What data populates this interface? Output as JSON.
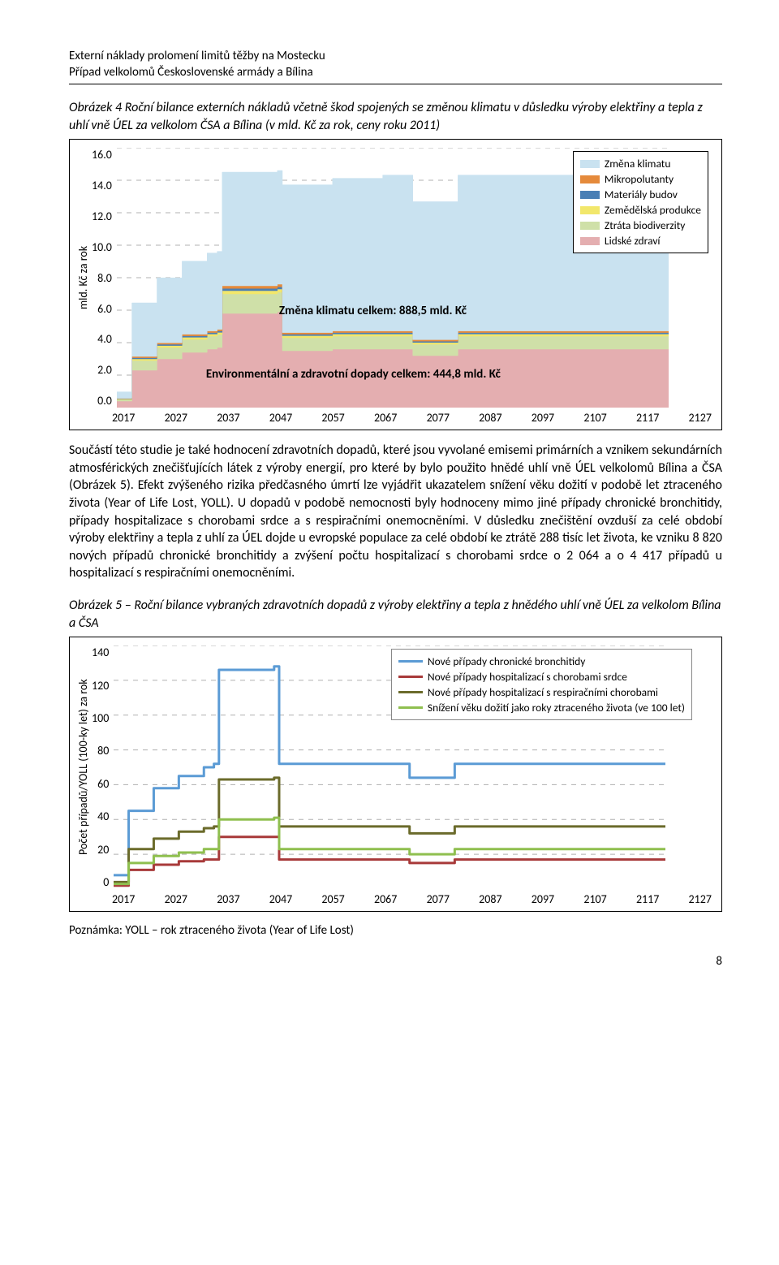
{
  "header": {
    "line1": "Externí náklady prolomení limitů těžby na Mostecku",
    "line2": "Případ velkolomů Československé armády a Bílina"
  },
  "fig4": {
    "title": "Obrázek 4 Roční bilance externích nákladů včetně škod spojených se změnou klimatu v důsledku výroby elektřiny a tepla z uhlí vně ÚEL za velkolom ČSA a Bílina (v mld. Kč za rok, ceny roku 2011)",
    "ylabel": "mld. Kč za rok",
    "ylim": [
      0,
      16
    ],
    "ytick_step": 2,
    "yticks": [
      "16.0",
      "14.0",
      "12.0",
      "10.0",
      "8.0",
      "6.0",
      "4.0",
      "2.0",
      "0.0"
    ],
    "xticks": [
      "2017",
      "2027",
      "2037",
      "2047",
      "2057",
      "2067",
      "2077",
      "2087",
      "2097",
      "2107",
      "2117",
      "2127"
    ],
    "legend": [
      {
        "label": "Změna klimatu",
        "color": "#c9e2f0"
      },
      {
        "label": "Mikropolutanty",
        "color": "#e58a3b"
      },
      {
        "label": "Materiály budov",
        "color": "#4a7fb5"
      },
      {
        "label": "Zemědělská produkce",
        "color": "#f2e76b"
      },
      {
        "label": "Ztráta biodiverzity",
        "color": "#cfe0a8"
      },
      {
        "label": "Lidské zdraví",
        "color": "#e4aeb0"
      }
    ],
    "annotation1": "Změna klimatu celkem: 888,5 mld. Kč",
    "annotation2": "Environmentální a zdravotní dopady celkem: 444,8 mld. Kč",
    "grid_color": "#b0b0b0",
    "colors": {
      "klima": "#c9e2f0",
      "mikro": "#e58a3b",
      "budov": "#4a7fb5",
      "zemed": "#f2e76b",
      "biodiv": "#cfe0a8",
      "zdravi": "#e4aeb0"
    },
    "years": [
      2017,
      2020,
      2025,
      2030,
      2035,
      2037,
      2038,
      2049,
      2050,
      2060,
      2070,
      2075,
      2076,
      2085,
      2090,
      2127
    ],
    "health": [
      0.4,
      2.3,
      3.0,
      3.4,
      3.6,
      3.7,
      5.8,
      5.9,
      3.5,
      3.6,
      3.6,
      3.6,
      3.2,
      3.6,
      3.6,
      3.6
    ],
    "biodiv": [
      0.1,
      0.6,
      0.7,
      0.8,
      0.8,
      0.8,
      1.2,
      1.2,
      0.8,
      0.8,
      0.8,
      0.8,
      0.7,
      0.8,
      0.8,
      0.8
    ],
    "zemed": [
      0.03,
      0.1,
      0.12,
      0.13,
      0.13,
      0.13,
      0.2,
      0.2,
      0.13,
      0.13,
      0.13,
      0.13,
      0.11,
      0.13,
      0.13,
      0.13
    ],
    "budov": [
      0.02,
      0.07,
      0.08,
      0.09,
      0.09,
      0.09,
      0.14,
      0.14,
      0.09,
      0.09,
      0.09,
      0.09,
      0.08,
      0.09,
      0.09,
      0.09
    ],
    "mikro": [
      0.02,
      0.08,
      0.09,
      0.1,
      0.1,
      0.1,
      0.16,
      0.16,
      0.1,
      0.1,
      0.1,
      0.1,
      0.09,
      0.1,
      0.1,
      0.1
    ],
    "klima": [
      0.4,
      3.3,
      4.0,
      4.5,
      4.8,
      4.8,
      7.0,
      7.0,
      9.1,
      9.4,
      9.6,
      9.6,
      8.5,
      9.6,
      9.6,
      9.6
    ]
  },
  "body": {
    "p1": "Součástí této studie je také hodnocení zdravotních dopadů, které jsou vyvolané emisemi primárních a vznikem sekundárních atmosférických znečišťujících látek z  výroby energií, pro které by bylo použito hnědé uhlí vně ÚEL velkolomů Bílina a ČSA (Obrázek 5). Efekt zvýšeného rizika předčasného úmrtí lze vyjádřit ukazatelem snížení věku dožití v podobě let ztraceného života (Year of Life Lost, YOLL). U dopadů v podobě nemocnosti byly hodnoceny mimo jiné případy chronické bronchitidy, případy hospitalizace s chorobami srdce a s respiračními onemocněními. V důsledku znečištění ovzduší za celé období výroby elektřiny a tepla z uhlí za ÚEL dojde u evropské populace za celé období ke ztrátě 288 tisíc let života, ke vzniku 8 820 nových případů chronické bronchitidy a zvýšení počtu hospitalizací s chorobami srdce o 2 064 a o 4 417 případů u hospitalizací s respiračními onemocněními."
  },
  "fig5": {
    "title": "Obrázek 5 – Roční bilance vybraných zdravotních dopadů z výroby elektřiny a tepla z hnědého uhlí vně ÚEL za velkolom Bílina a ČSA",
    "ylabel": "Počet případů/YOLL (100-ky let) za rok",
    "ylim": [
      0,
      140
    ],
    "ytick_step": 20,
    "yticks": [
      "140",
      "120",
      "100",
      "80",
      "60",
      "40",
      "20",
      "0"
    ],
    "xticks": [
      "2017",
      "2027",
      "2037",
      "2047",
      "2057",
      "2067",
      "2077",
      "2087",
      "2097",
      "2107",
      "2117",
      "2127"
    ],
    "grid_color": "#b0b0b0",
    "legend": [
      {
        "label": "Nové případy chronické  bronchitidy",
        "color": "#5b9bd5"
      },
      {
        "label": "Nové případy hospitalizací s chorobami  srdce",
        "color": "#a83a3a"
      },
      {
        "label": "Nové případy hospitalizací s respiračními chorobami",
        "color": "#6b6b2b"
      },
      {
        "label": "Snížení věku dožití jako roky ztraceného života (ve 100  let)",
        "color": "#8fbf4f"
      }
    ],
    "years": [
      2017,
      2020,
      2025,
      2030,
      2035,
      2037,
      2038,
      2049,
      2050,
      2075,
      2076,
      2085,
      2090,
      2127
    ],
    "bronchitis": [
      8,
      45,
      58,
      65,
      70,
      72,
      126,
      128,
      72,
      72,
      64,
      72,
      72,
      72
    ],
    "heart": [
      2,
      11,
      14,
      16,
      17,
      17,
      30,
      30,
      17,
      17,
      15,
      17,
      17,
      17
    ],
    "resp": [
      4,
      23,
      29,
      33,
      35,
      36,
      63,
      64,
      36,
      36,
      32,
      36,
      36,
      36
    ],
    "yoll": [
      3,
      15,
      19,
      21,
      23,
      23,
      40,
      41,
      23,
      23,
      20,
      23,
      23,
      23
    ]
  },
  "note": "Poznámka: YOLL – rok ztraceného života (Year of Life Lost)",
  "page_number": "8"
}
